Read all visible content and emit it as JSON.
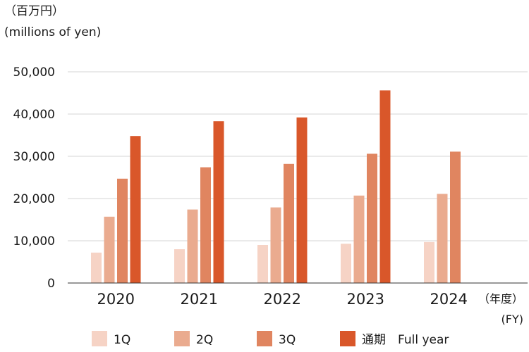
{
  "chart_data": {
    "type": "bar",
    "unit_label_ja": "（百万円）",
    "unit_label_en": "(millions of yen)",
    "x_unit_ja": "（年度）",
    "x_unit_en": "(FY)",
    "categories": [
      "2020",
      "2021",
      "2022",
      "2023",
      "2024"
    ],
    "ylim": [
      0,
      50000
    ],
    "yticks": [
      0,
      10000,
      20000,
      30000,
      40000,
      50000
    ],
    "ytick_labels": [
      "0",
      "10,000",
      "20,000",
      "30,000",
      "40,000",
      "50,000"
    ],
    "grid": true,
    "legend_position": "bottom",
    "series": [
      {
        "name": "1Q",
        "color": "#f6d3c5",
        "values": [
          7200,
          8000,
          9000,
          9300,
          9700
        ]
      },
      {
        "name": "2Q",
        "color": "#eaab8f",
        "values": [
          15700,
          17400,
          17900,
          20700,
          21100
        ]
      },
      {
        "name": "3Q",
        "color": "#e08560",
        "values": [
          24700,
          27400,
          28200,
          30600,
          31100
        ]
      },
      {
        "name": "通期　Full year",
        "color": "#d9572a",
        "values": [
          34800,
          38300,
          39200,
          45600,
          null
        ]
      }
    ]
  }
}
